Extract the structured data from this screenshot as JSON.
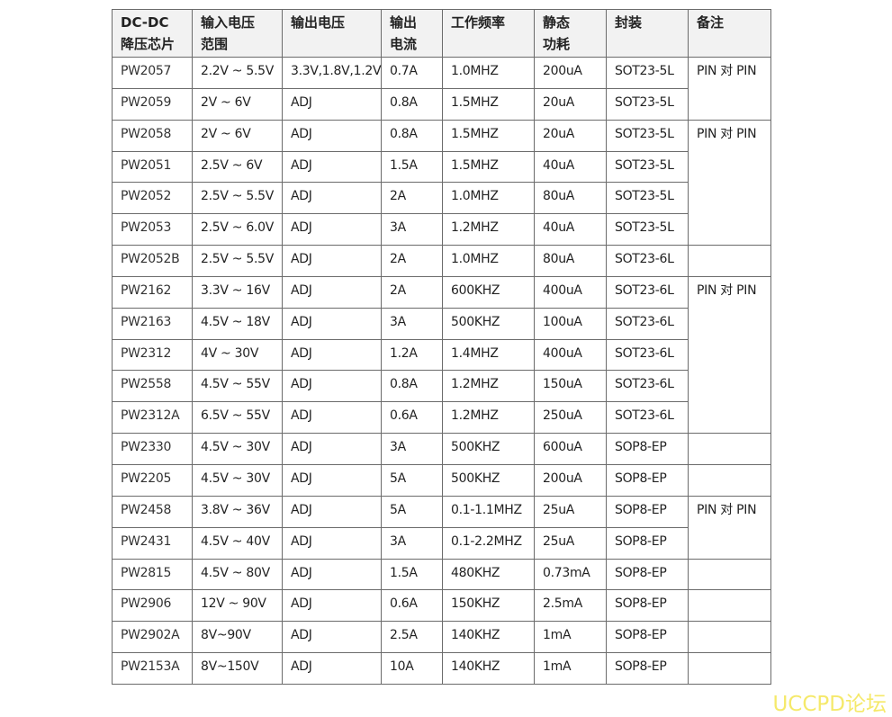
{
  "table": {
    "headers": [
      "DC-DC\n降压芯片",
      "输入电压\n范围",
      "输出电压",
      "输出\n电流",
      "工作频率",
      "静态\n功耗",
      "封装",
      "备注"
    ],
    "rows": [
      {
        "cells": [
          "PW2057",
          "2.2V ~ 5.5V",
          "3.3V,1.8V,1.2V",
          "0.7A",
          "1.0MHZ",
          "200uA",
          "SOT23-5L"
        ],
        "note": "PIN 对 PIN",
        "note_span": 2
      },
      {
        "cells": [
          "PW2059",
          "2V ~ 6V",
          "ADJ",
          "0.8A",
          "1.5MHZ",
          "20uA",
          "SOT23-5L"
        ]
      },
      {
        "cells": [
          "PW2058",
          "2V ~ 6V",
          "ADJ",
          "0.8A",
          "1.5MHZ",
          "20uA",
          "SOT23-5L"
        ],
        "note": "PIN 对 PIN",
        "note_span": 4
      },
      {
        "cells": [
          "PW2051",
          "2.5V ~ 6V",
          "ADJ",
          "1.5A",
          "1.5MHZ",
          "40uA",
          "SOT23-5L"
        ]
      },
      {
        "cells": [
          "PW2052",
          "2.5V ~ 5.5V",
          "ADJ",
          "2A",
          "1.0MHZ",
          "80uA",
          "SOT23-5L"
        ]
      },
      {
        "cells": [
          "PW2053",
          "2.5V ~ 6.0V",
          "ADJ",
          "3A",
          "1.2MHZ",
          "40uA",
          "SOT23-5L"
        ]
      },
      {
        "cells": [
          "PW2052B",
          "2.5V ~ 5.5V",
          "ADJ",
          "2A",
          "1.0MHZ",
          "80uA",
          "SOT23-6L"
        ],
        "note": "",
        "note_span": 1
      },
      {
        "cells": [
          "PW2162",
          "3.3V ~ 16V",
          "ADJ",
          "2A",
          "600KHZ",
          "400uA",
          "SOT23-6L"
        ],
        "note": "PIN 对 PIN",
        "note_span": 5
      },
      {
        "cells": [
          "PW2163",
          "4.5V ~ 18V",
          "ADJ",
          "3A",
          "500KHZ",
          "100uA",
          "SOT23-6L"
        ]
      },
      {
        "cells": [
          "PW2312",
          "4V ~ 30V",
          "ADJ",
          "1.2A",
          "1.4MHZ",
          "400uA",
          "SOT23-6L"
        ]
      },
      {
        "cells": [
          "PW2558",
          "4.5V ~ 55V",
          "ADJ",
          "0.8A",
          "1.2MHZ",
          "150uA",
          "SOT23-6L"
        ]
      },
      {
        "cells": [
          "PW2312A",
          "6.5V ~ 55V",
          "ADJ",
          "0.6A",
          "1.2MHZ",
          "250uA",
          "SOT23-6L"
        ]
      },
      {
        "cells": [
          "PW2330",
          "4.5V ~ 30V",
          "ADJ",
          "3A",
          "500KHZ",
          "600uA",
          "SOP8-EP"
        ],
        "note": "",
        "note_span": 1
      },
      {
        "cells": [
          "PW2205",
          "4.5V ~ 30V",
          "ADJ",
          "5A",
          "500KHZ",
          "200uA",
          "SOP8-EP"
        ],
        "note": "",
        "note_span": 1
      },
      {
        "cells": [
          "PW2458",
          "3.8V ~ 36V",
          "ADJ",
          "5A",
          "0.1-1.1MHZ",
          "25uA",
          "SOP8-EP"
        ],
        "note": "PIN 对 PIN",
        "note_span": 2
      },
      {
        "cells": [
          "PW2431",
          "4.5V ~ 40V",
          "ADJ",
          "3A",
          "0.1-2.2MHZ",
          "25uA",
          "SOP8-EP"
        ]
      },
      {
        "cells": [
          "PW2815",
          "4.5V ~ 80V",
          "ADJ",
          "1.5A",
          "480KHZ",
          "0.73mA",
          "SOP8-EP"
        ],
        "note": "",
        "note_span": 1
      },
      {
        "cells": [
          "PW2906",
          "12V ~ 90V",
          "ADJ",
          "0.6A",
          "150KHZ",
          "2.5mA",
          "SOP8-EP"
        ],
        "note": "",
        "note_span": 1
      },
      {
        "cells": [
          "PW2902A",
          "8V~90V",
          "ADJ",
          "2.5A",
          "140KHZ",
          "1mA",
          "SOP8-EP"
        ],
        "note": "",
        "note_span": 1
      },
      {
        "cells": [
          "PW2153A",
          "8V~150V",
          "ADJ",
          "10A",
          "140KHZ",
          "1mA",
          "SOP8-EP"
        ],
        "note": "",
        "note_span": 1
      }
    ]
  },
  "watermark": "UCCPD论坛"
}
